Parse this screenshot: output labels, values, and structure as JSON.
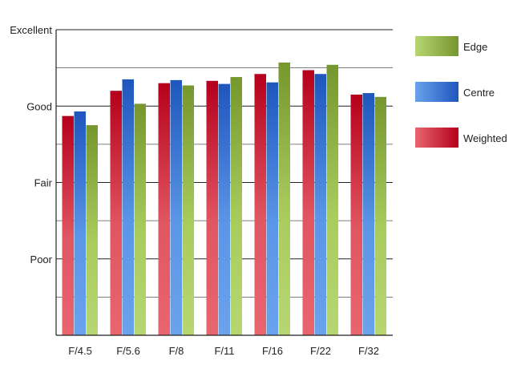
{
  "chart_data": {
    "type": "bar",
    "categories": [
      "F/4.5",
      "F/5.6",
      "F/8",
      "F/11",
      "F/16",
      "F/22",
      "F/32"
    ],
    "y_ticks": [
      {
        "value": 1,
        "label": "Poor"
      },
      {
        "value": 2,
        "label": "Fair"
      },
      {
        "value": 3,
        "label": "Good"
      },
      {
        "value": 4,
        "label": "Excellent"
      }
    ],
    "ylim": [
      0,
      4
    ],
    "grid": true,
    "legend_position": "right",
    "series": [
      {
        "name": "Weighted",
        "values": [
          2.87,
          3.2,
          3.3,
          3.33,
          3.42,
          3.47,
          3.15
        ],
        "color": "#c8102e"
      },
      {
        "name": "Centre",
        "values": [
          2.93,
          3.35,
          3.34,
          3.29,
          3.31,
          3.42,
          3.17
        ],
        "color": "#2a68c8"
      },
      {
        "name": "Edge",
        "values": [
          2.75,
          3.03,
          3.27,
          3.38,
          3.57,
          3.54,
          3.12
        ],
        "color": "#8aae3a"
      }
    ],
    "legend_order": [
      "Edge",
      "Centre",
      "Weighted"
    ]
  }
}
